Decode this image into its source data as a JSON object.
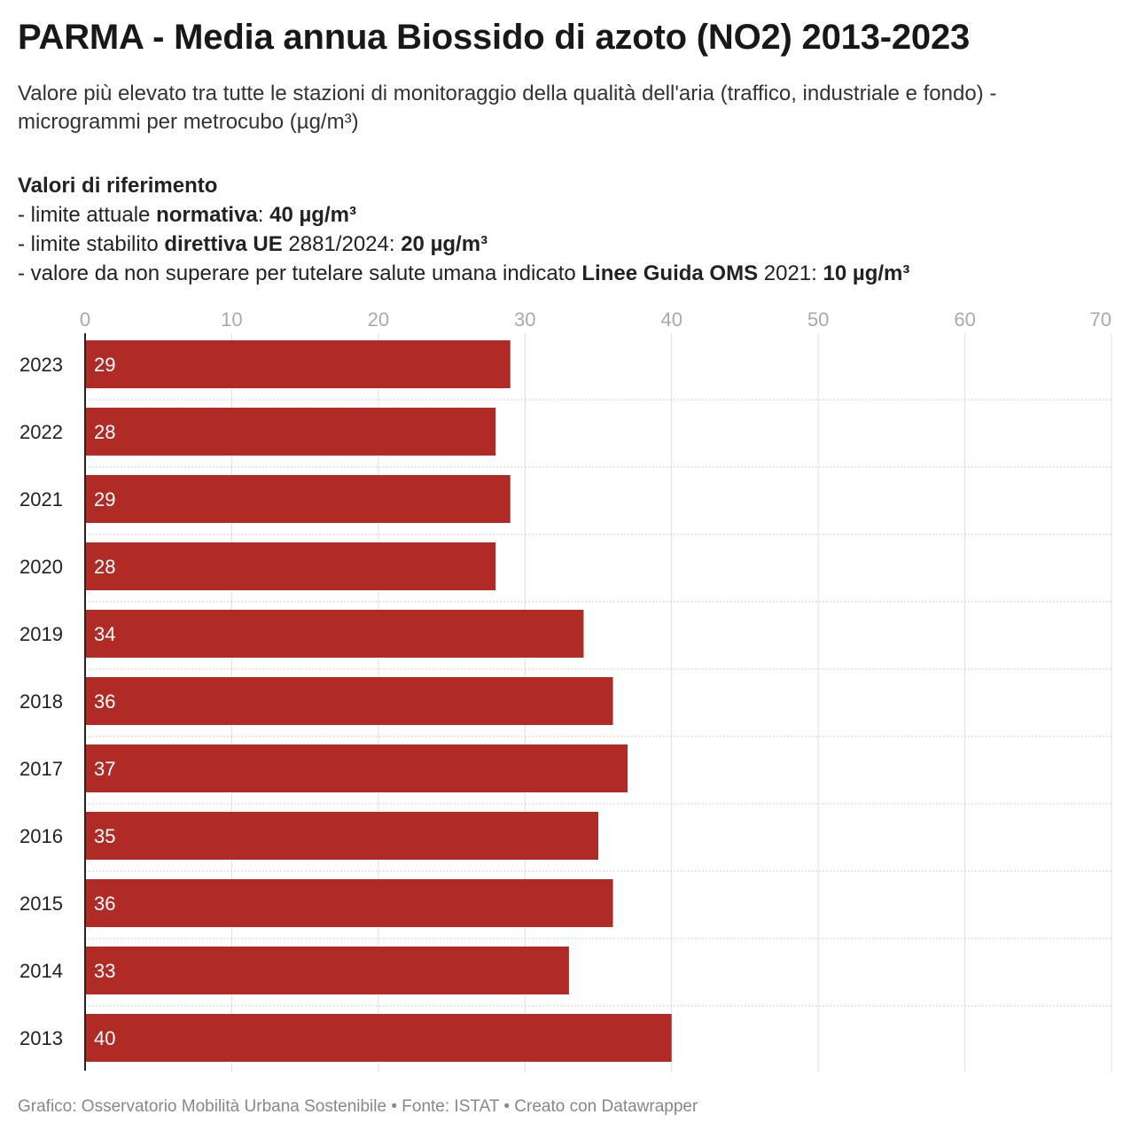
{
  "title": "PARMA - Media annua Biossido di azoto (NO2) 2013-2023",
  "subtitle": "Valore più elevato tra tutte le stazioni di monitoraggio della qualità dell'aria (traffico, industriale e fondo) - microgrammi per metrocubo (µg/m³)",
  "reference": {
    "heading": "Valori di riferimento",
    "line1": {
      "prefix": "- limite attuale ",
      "bold1": "normativa",
      "mid": ": ",
      "bold2": "40 µg/m³"
    },
    "line2": {
      "prefix": "- limite stabilito ",
      "bold1": "direttiva UE",
      "mid": " 2881/2024: ",
      "bold2": "20 µg/m³"
    },
    "line3": {
      "prefix": "- valore da non superare per tutelare salute umana indicato ",
      "bold1": "Linee Guida OMS",
      "mid": " 2021: ",
      "bold2": "10 µg/m³"
    }
  },
  "footer": "Grafico: Osservatorio Mobilità Urbana Sostenibile • Fonte: ISTAT • Creato con Datawrapper",
  "colors": {
    "bar": "#b02b25",
    "bar_label": "#ffffff",
    "grid": "#e0e0e0",
    "tick": "#aaaaaa"
  },
  "chart_data": {
    "type": "bar",
    "orientation": "horizontal",
    "categories": [
      "2023",
      "2022",
      "2021",
      "2020",
      "2019",
      "2018",
      "2017",
      "2016",
      "2015",
      "2014",
      "2013"
    ],
    "values": [
      29,
      28,
      29,
      28,
      34,
      36,
      37,
      35,
      36,
      33,
      40
    ],
    "xlim": [
      0,
      70
    ],
    "xticks": [
      0,
      10,
      20,
      30,
      40,
      50,
      60,
      70
    ],
    "xticks_position": "top",
    "grid": true
  }
}
